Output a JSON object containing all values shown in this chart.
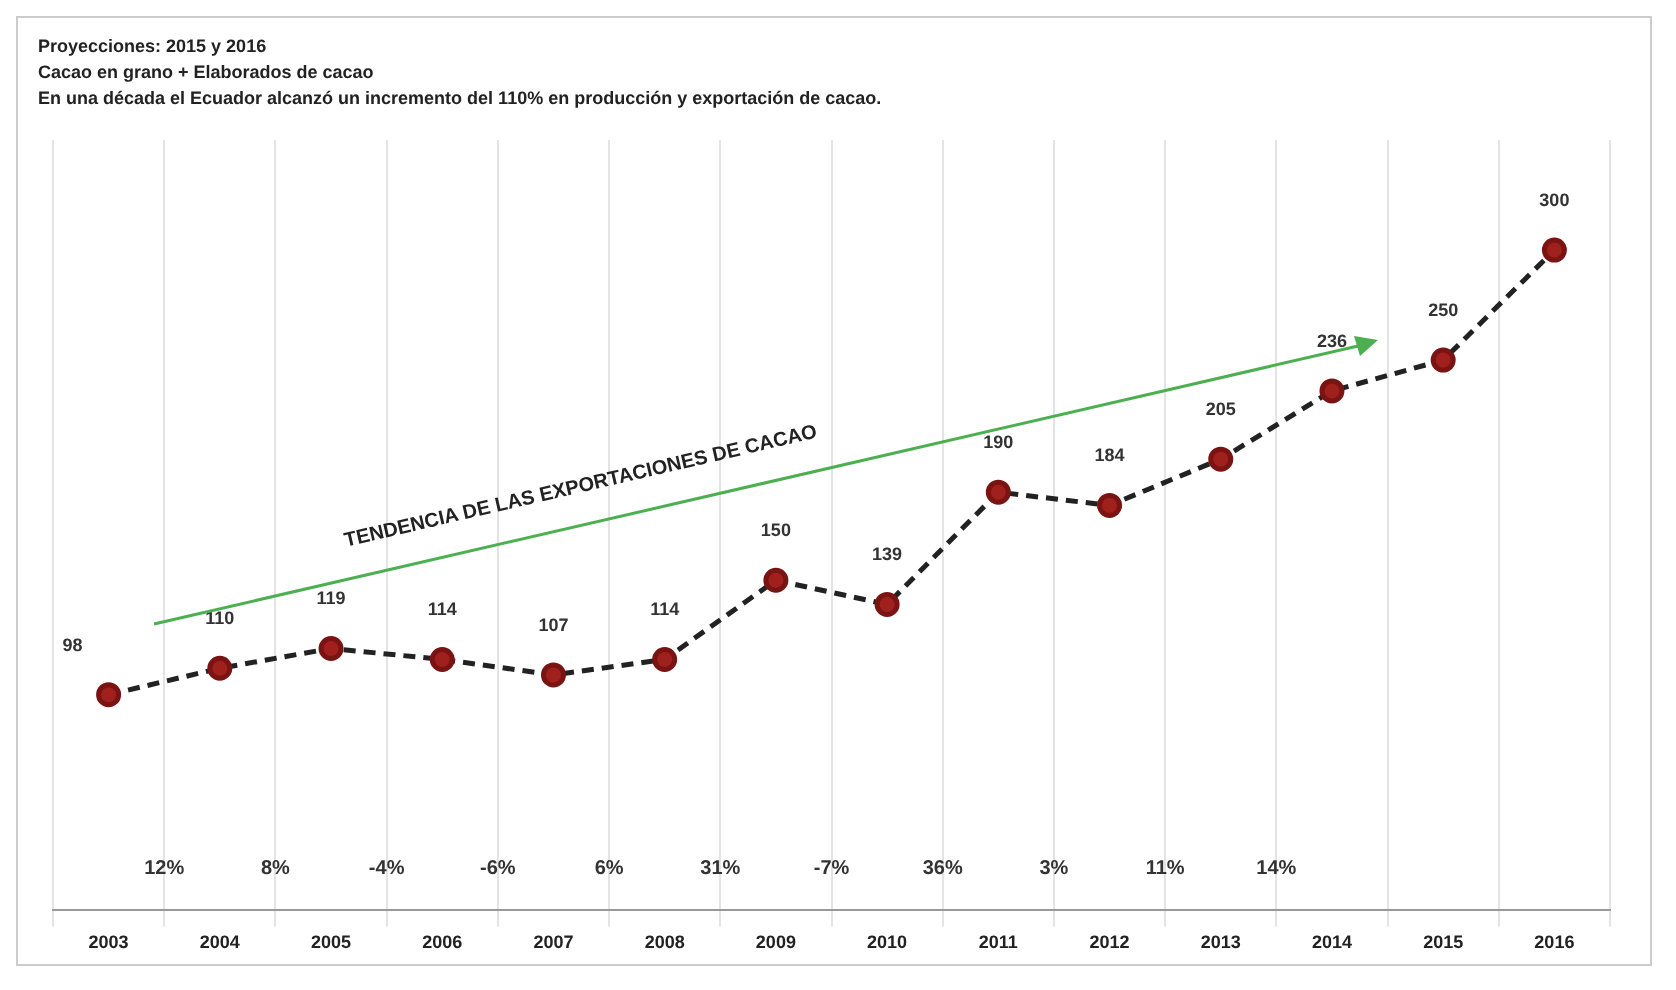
{
  "chart_data": {
    "type": "line",
    "title": "Proyecciones: 2015 y 2016",
    "subtitle": "Cacao en grano + Elaborados de cacao\nEn una década el Ecuador alcanzó un incremento del 110% en producción y exportación de cacao.",
    "categories": [
      "2003",
      "2004",
      "2005",
      "2006",
      "2007",
      "2008",
      "2009",
      "2010",
      "2011",
      "2012",
      "2013",
      "2014",
      "2015",
      "2016"
    ],
    "series": [
      {
        "color": "#222222",
        "values": [
          98,
          110,
          119,
          114,
          107,
          114,
          150,
          139,
          190,
          184,
          205,
          236,
          250,
          300
        ]
      }
    ],
    "marker": "circle",
    "line_style": "dashed",
    "data_labels": true,
    "grid": "x",
    "legend": false,
    "annotations": [
      "TENDENCIA DE LAS EXPORTACIONES DE CACAO",
      "12%",
      "8%",
      "-4%",
      "-6%",
      "6%",
      "31%",
      "-7%",
      "36%",
      "3%",
      "11%",
      "14%"
    ]
  }
}
